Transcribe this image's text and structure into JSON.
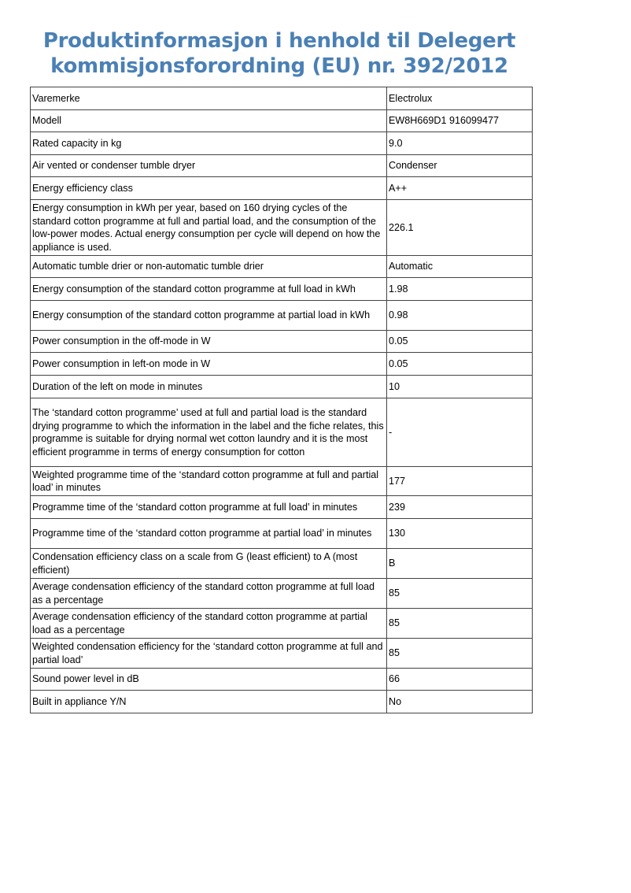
{
  "title_line1": "Produktinformasjon i henhold til Delegert",
  "title_line2": "kommisjonsforordning (EU) nr. 392/2012",
  "rows": [
    {
      "label": "Varemerke",
      "value": "Electrolux"
    },
    {
      "label": "Modell",
      "value": "EW8H669D1 916099477"
    },
    {
      "label": "Rated capacity in kg",
      "value": "9.0"
    },
    {
      "label": "Air vented or condenser tumble dryer",
      "value": "Condenser"
    },
    {
      "label": "Energy efficiency class",
      "value": "A++"
    },
    {
      "label": "Energy consumption in kWh per year, based on 160 drying cycles of the standard cotton programme at full and partial load, and the consumption of the low-power modes. Actual energy consumption per cycle will depend on how the appliance is used.",
      "value": "226.1"
    },
    {
      "label": "Automatic tumble drier or non-automatic tumble drier",
      "value": "Automatic"
    },
    {
      "label": "Energy consumption of the standard cotton programme at full load in kWh",
      "value": "1.98"
    },
    {
      "label": "Energy consumption of the standard cotton programme at partial load in kWh",
      "value": "0.98"
    },
    {
      "label": "Power consumption in the off-mode in W",
      "value": "0.05"
    },
    {
      "label": "Power consumption in left-on mode in W",
      "value": "0.05"
    },
    {
      "label": "Duration of the left on mode in minutes",
      "value": "10"
    },
    {
      "label": "The ‘standard cotton programme’ used at full and partial load is the standard drying programme to which the information in the label and the fiche relates, this programme is suitable for drying normal wet cotton laundry and it is the most efficient programme in terms of energy consumption for cotton",
      "value": "-"
    },
    {
      "label": "Weighted programme time of the ‘standard cotton programme at full and partial load’ in minutes",
      "value": "177"
    },
    {
      "label": "Programme time of the ‘standard cotton programme at full load’ in minutes",
      "value": "239"
    },
    {
      "label": "Programme time of the ‘standard cotton programme at partial load’ in minutes",
      "value": "130"
    },
    {
      "label": "Condensation efficiency class on a scale from G (least efficient) to A (most efficient)",
      "value": "B"
    },
    {
      "label": "Average condensation efficiency of the standard cotton programme at full load as a percentage",
      "value": "85"
    },
    {
      "label": "Average condensation efficiency of the standard cotton programme at partial load as a percentage",
      "value": "85"
    },
    {
      "label": "Weighted condensation efficiency for the ‘standard cotton programme at full and partial load’",
      "value": "85"
    },
    {
      "label": "Sound power level in dB",
      "value": "66"
    },
    {
      "label": "Built in appliance Y/N",
      "value": "No"
    }
  ]
}
